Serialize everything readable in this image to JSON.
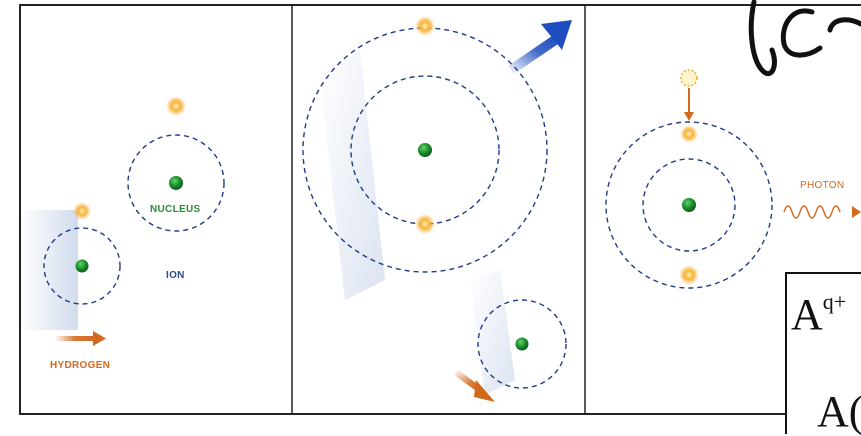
{
  "panel1": {
    "nucleus_label": "NUCLEUS",
    "ion_label": "ION",
    "hydrogen_label": "HYDROGEN"
  },
  "panel3": {
    "photon_label": "PHOTON"
  },
  "equation": {
    "top_base": "A",
    "top_sup": "q+",
    "bottom_partial": "A("
  },
  "colors": {
    "nucleus": "#1a8a2a",
    "electron": "#f5a623",
    "orbit": "#1f3c88",
    "nucleus_label": "#2e8b3a",
    "ion_label": "#2b4a8a",
    "hydrogen_label": "#d2691e",
    "photon": "#d2691e",
    "motion_arrow_blue": "#1f4fbf",
    "motion_arrow_orange": "#d2691e"
  }
}
